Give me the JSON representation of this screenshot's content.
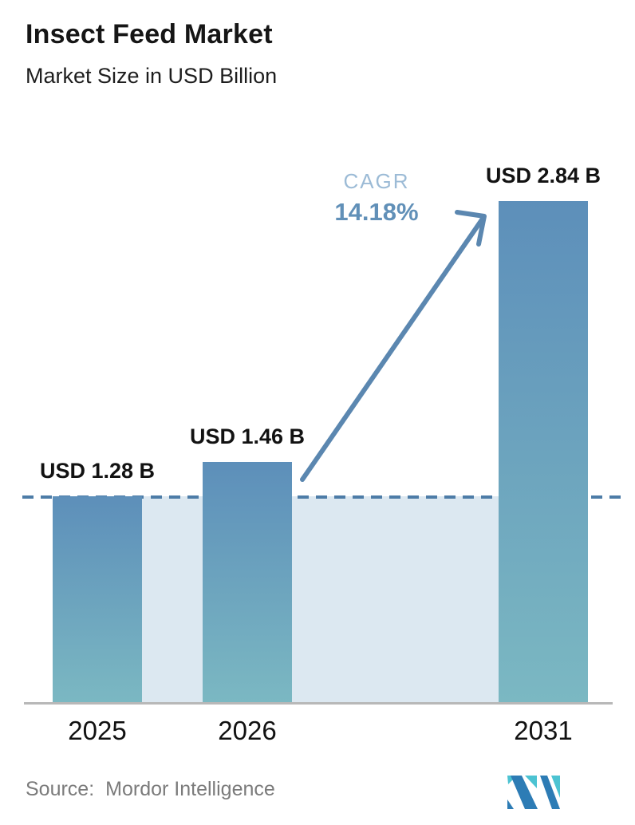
{
  "header": {
    "title": "Insect Feed Market",
    "subtitle": "Market Size in USD Billion"
  },
  "chart_data": {
    "type": "bar",
    "title": "Insect Feed Market",
    "subtitle": "Market Size in USD Billion",
    "categories": [
      "2025",
      "2026",
      "2031"
    ],
    "values": [
      1.28,
      1.46,
      2.84
    ],
    "value_labels": [
      "USD 1.28 B",
      "USD 1.46 B",
      "USD 2.84 B"
    ],
    "unit": "USD Billion",
    "ylim": [
      0,
      3.2
    ],
    "grid": false,
    "legend": false,
    "annotations": {
      "cagr_label": "CAGR",
      "cagr_value": "14.18%",
      "baseline_reference": "dashed line at 2025 level (1.28) with shaded band down to axis",
      "growth_arrow": "from 2026 bar top to 2031 bar top"
    },
    "colors": {
      "bar_top": "#5d8fba",
      "bar_bottom": "#7bb8c2",
      "shade": "#dce8f1",
      "dashed_line": "#4d7ca7",
      "arrow": "#5b87b0",
      "cagr_label_color": "#9cbbd6",
      "cagr_value_color": "#6190b8",
      "axis_line": "#b8b8b8",
      "label_text": "#121212"
    }
  },
  "footer": {
    "source_label": "Source:",
    "source_value": "Mordor Intelligence",
    "logo": "mordor-intelligence-logo",
    "logo_colors": {
      "blue": "#2d7cb5",
      "teal": "#4cc3d2"
    }
  }
}
